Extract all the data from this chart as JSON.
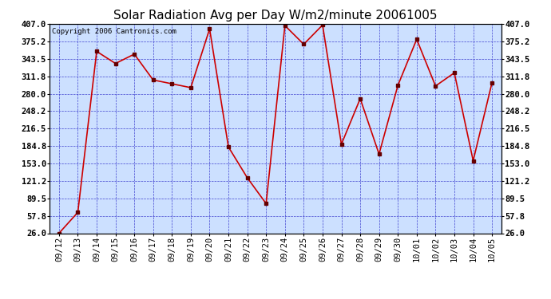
{
  "title": "Solar Radiation Avg per Day W/m2/minute 20061005",
  "copyright": "Copyright 2006 Cantronics.com",
  "x_labels": [
    "09/12",
    "09/13",
    "09/14",
    "09/15",
    "09/16",
    "09/17",
    "09/18",
    "09/19",
    "09/20",
    "09/21",
    "09/22",
    "09/23",
    "09/24",
    "09/25",
    "09/26",
    "09/27",
    "09/28",
    "09/29",
    "09/30",
    "10/01",
    "10/02",
    "10/03",
    "10/04",
    "10/05"
  ],
  "y_values": [
    26.0,
    64.0,
    357.0,
    335.0,
    352.0,
    305.0,
    298.0,
    291.0,
    398.0,
    183.0,
    127.0,
    80.0,
    404.0,
    370.0,
    405.0,
    188.0,
    271.0,
    170.0,
    295.0,
    379.0,
    294.0,
    318.0,
    158.0,
    300.0
  ],
  "y_ticks": [
    26.0,
    57.8,
    89.5,
    121.2,
    153.0,
    184.8,
    216.5,
    248.2,
    280.0,
    311.8,
    343.5,
    375.2,
    407.0
  ],
  "y_min": 26.0,
  "y_max": 407.0,
  "line_color": "#cc0000",
  "marker_color": "#660000",
  "bg_color": "#ffffff",
  "plot_bg_color": "#cce0ff",
  "grid_color": "#3333cc",
  "title_fontsize": 11,
  "copyright_fontsize": 6.5,
  "tick_fontsize": 7.5,
  "title_color": "#000000",
  "axis_label_color": "#000000"
}
